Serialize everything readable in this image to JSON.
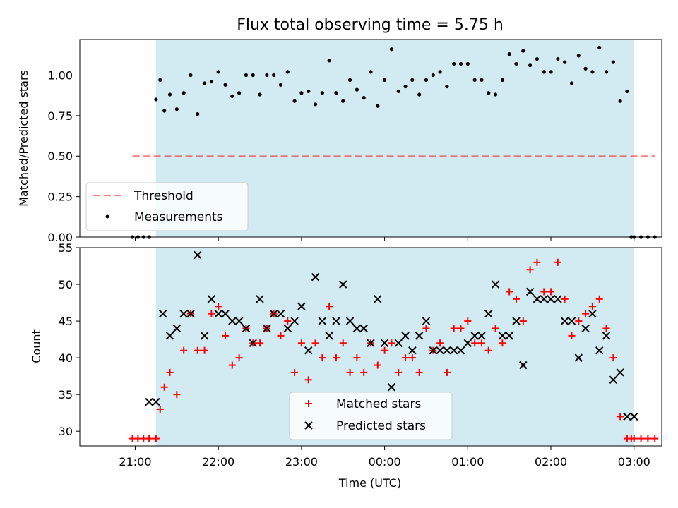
{
  "figure": {
    "title": "Flux total observing time = 5.75 h"
  },
  "colors": {
    "shade": "#add8e6",
    "threshold": "#ff0000",
    "measurement": "#000000",
    "matched": "#ff0000",
    "predicted": "#000000"
  },
  "chart_data": [
    {
      "type": "scatter",
      "panel": "top",
      "ylabel": "Matched/Predicted stars",
      "xlabel": "",
      "ylim": [
        0,
        1.22
      ],
      "yticks": [
        0.0,
        0.25,
        0.5,
        0.75,
        1.0
      ],
      "ytick_labels": [
        "0.00",
        "0.25",
        "0.50",
        "0.75",
        "1.00"
      ],
      "grid": false,
      "legend": "lower-left",
      "shaded_range": [
        "21:15",
        "03:00"
      ],
      "threshold": {
        "name": "Threshold",
        "value": 0.5,
        "x_range": [
          "20:58",
          "03:15"
        ]
      },
      "series": [
        {
          "name": "Measurements",
          "x": [
            "20:58",
            "21:02",
            "21:06",
            "21:10",
            "21:15",
            "21:18",
            "21:21",
            "21:25",
            "21:30",
            "21:35",
            "21:40",
            "21:45",
            "21:50",
            "21:55",
            "22:00",
            "22:05",
            "22:10",
            "22:15",
            "22:20",
            "22:25",
            "22:30",
            "22:35",
            "22:40",
            "22:45",
            "22:50",
            "22:55",
            "23:00",
            "23:05",
            "23:10",
            "23:15",
            "23:20",
            "23:25",
            "23:30",
            "23:35",
            "23:40",
            "23:45",
            "23:50",
            "23:55",
            "00:00",
            "00:05",
            "00:10",
            "00:15",
            "00:20",
            "00:25",
            "00:30",
            "00:35",
            "00:40",
            "00:45",
            "00:50",
            "00:55",
            "01:00",
            "01:05",
            "01:10",
            "01:15",
            "01:20",
            "01:25",
            "01:30",
            "01:35",
            "01:40",
            "01:45",
            "01:50",
            "01:55",
            "02:00",
            "02:05",
            "02:10",
            "02:15",
            "02:20",
            "02:25",
            "02:30",
            "02:35",
            "02:40",
            "02:45",
            "02:50",
            "02:55",
            "02:58",
            "03:00",
            "03:05",
            "03:10",
            "03:15"
          ],
          "y": [
            0,
            0,
            0,
            0,
            0.85,
            0.97,
            0.78,
            0.88,
            0.79,
            0.89,
            1.0,
            0.76,
            0.95,
            0.96,
            1.02,
            0.94,
            0.87,
            0.89,
            1.0,
            1.0,
            0.88,
            1.0,
            1.0,
            0.94,
            1.02,
            0.84,
            0.89,
            0.9,
            0.82,
            0.89,
            1.09,
            0.89,
            0.84,
            0.97,
            0.91,
            0.86,
            1.02,
            0.81,
            0.97,
            1.16,
            0.9,
            0.93,
            0.97,
            0.88,
            0.97,
            1.0,
            1.02,
            0.93,
            1.07,
            1.07,
            1.07,
            0.97,
            0.97,
            0.89,
            0.88,
            0.97,
            1.13,
            1.07,
            1.15,
            1.06,
            1.1,
            1.02,
            1.02,
            1.1,
            1.08,
            0.95,
            1.12,
            1.04,
            1.02,
            1.17,
            1.02,
            1.08,
            0.84,
            0.9,
            0,
            0,
            0,
            0,
            0
          ]
        }
      ]
    },
    {
      "type": "scatter",
      "panel": "bottom",
      "xlabel": "Time (UTC)",
      "ylabel": "Count",
      "ylim": [
        28,
        55
      ],
      "yticks": [
        30,
        35,
        40,
        45,
        50,
        55
      ],
      "ytick_labels": [
        "30",
        "35",
        "40",
        "45",
        "50",
        "55"
      ],
      "xticks": [
        "21:00",
        "22:00",
        "23:00",
        "00:00",
        "01:00",
        "02:00",
        "03:00"
      ],
      "xlim": [
        "20:20",
        "03:20"
      ],
      "grid": false,
      "legend": "lower-center",
      "shaded_range": [
        "21:15",
        "03:00"
      ],
      "series": [
        {
          "name": "Matched stars",
          "x": [
            "20:58",
            "21:02",
            "21:06",
            "21:10",
            "21:15",
            "21:18",
            "21:21",
            "21:25",
            "21:30",
            "21:35",
            "21:40",
            "21:45",
            "21:50",
            "21:55",
            "22:00",
            "22:05",
            "22:10",
            "22:15",
            "22:20",
            "22:25",
            "22:30",
            "22:35",
            "22:40",
            "22:45",
            "22:50",
            "22:55",
            "23:00",
            "23:05",
            "23:10",
            "23:15",
            "23:20",
            "23:25",
            "23:30",
            "23:35",
            "23:40",
            "23:45",
            "23:50",
            "23:55",
            "00:00",
            "00:05",
            "00:10",
            "00:15",
            "00:20",
            "00:25",
            "00:30",
            "00:35",
            "00:40",
            "00:45",
            "00:50",
            "00:55",
            "01:00",
            "01:05",
            "01:10",
            "01:15",
            "01:20",
            "01:25",
            "01:30",
            "01:35",
            "01:40",
            "01:45",
            "01:50",
            "01:55",
            "02:00",
            "02:05",
            "02:10",
            "02:15",
            "02:20",
            "02:25",
            "02:30",
            "02:35",
            "02:40",
            "02:45",
            "02:50",
            "02:55",
            "02:58",
            "03:00",
            "03:05",
            "03:10",
            "03:15"
          ],
          "y": [
            29,
            29,
            29,
            29,
            29,
            33,
            36,
            38,
            35,
            41,
            46,
            41,
            41,
            46,
            47,
            43,
            39,
            40,
            44,
            42,
            42,
            44,
            46,
            43,
            45,
            38,
            42,
            37,
            42,
            40,
            47,
            40,
            42,
            38,
            40,
            38,
            42,
            39,
            41,
            42,
            38,
            40,
            40,
            38,
            44,
            41,
            42,
            38,
            44,
            44,
            45,
            42,
            42,
            41,
            44,
            42,
            49,
            48,
            45,
            52,
            53,
            49,
            49,
            53,
            48,
            43,
            45,
            46,
            47,
            48,
            44,
            40,
            32,
            29,
            29,
            29,
            29,
            29,
            29
          ]
        },
        {
          "name": "Predicted stars",
          "x": [
            "21:10",
            "21:15",
            "21:20",
            "21:25",
            "21:30",
            "21:35",
            "21:40",
            "21:45",
            "21:50",
            "21:55",
            "22:00",
            "22:05",
            "22:10",
            "22:15",
            "22:20",
            "22:25",
            "22:30",
            "22:35",
            "22:40",
            "22:45",
            "22:50",
            "22:55",
            "23:00",
            "23:05",
            "23:10",
            "23:15",
            "23:20",
            "23:25",
            "23:30",
            "23:35",
            "23:40",
            "23:45",
            "23:50",
            "23:55",
            "00:00",
            "00:05",
            "00:10",
            "00:15",
            "00:20",
            "00:25",
            "00:30",
            "00:35",
            "00:40",
            "00:45",
            "00:50",
            "00:55",
            "01:00",
            "01:05",
            "01:10",
            "01:15",
            "01:20",
            "01:25",
            "01:30",
            "01:35",
            "01:40",
            "01:45",
            "01:50",
            "01:55",
            "02:00",
            "02:05",
            "02:10",
            "02:15",
            "02:20",
            "02:25",
            "02:30",
            "02:35",
            "02:40",
            "02:45",
            "02:50",
            "02:55",
            "03:00"
          ],
          "y": [
            34,
            34,
            46,
            43,
            44,
            46,
            46,
            54,
            43,
            48,
            46,
            46,
            45,
            45,
            44,
            42,
            48,
            44,
            46,
            46,
            44,
            45,
            47,
            41,
            51,
            45,
            43,
            45,
            50,
            45,
            44,
            44,
            42,
            48,
            42,
            36,
            42,
            43,
            41,
            43,
            45,
            41,
            41,
            41,
            41,
            41,
            42,
            43,
            43,
            46,
            50,
            43,
            43,
            45,
            39,
            49,
            48,
            48,
            48,
            48,
            45,
            45,
            40,
            44,
            46,
            41,
            43,
            37,
            38,
            32,
            32
          ]
        }
      ]
    }
  ]
}
